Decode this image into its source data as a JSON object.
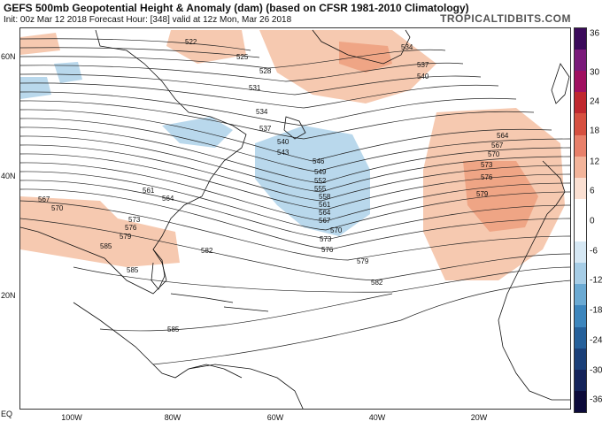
{
  "header": {
    "title": "GEFS 500mb Geopotential Height & Anomaly (dam) (based on CFSR 1981-2010 Climatology)",
    "subtitle": "Init: 00z Mar 12 2018   Forecast Hour: [348]   valid at 12z Mon, Mar 26 2018",
    "brand": "TROPICALTIDBITS.COM"
  },
  "axes": {
    "lat_labels": [
      "60N",
      "40N",
      "20N",
      "EQ"
    ],
    "lon_labels": [
      "100W",
      "80W",
      "60W",
      "40W",
      "20W"
    ]
  },
  "colorbar": {
    "labels": [
      "36",
      "30",
      "24",
      "18",
      "12",
      "6",
      "0",
      "-6",
      "-12",
      "-18",
      "-24",
      "-30",
      "-36"
    ],
    "colors": [
      "#3a0a5a",
      "#7a1a7a",
      "#a01060",
      "#c0282e",
      "#d65040",
      "#e8806a",
      "#f3b49a",
      "#fbe0d2",
      "#ffffff",
      "#ffffff",
      "#d6e8f4",
      "#a6cde6",
      "#6baad3",
      "#3d86bd",
      "#25609a",
      "#1a3f78",
      "#14235a",
      "#0c0a3a"
    ]
  },
  "map": {
    "contour_labels": [
      "522",
      "525",
      "528",
      "531",
      "534",
      "537",
      "540",
      "543",
      "546",
      "549",
      "552",
      "555",
      "558",
      "561",
      "564",
      "567",
      "570",
      "573",
      "576",
      "579",
      "582",
      "585",
      "534",
      "537",
      "540",
      "564",
      "567",
      "570",
      "573",
      "576",
      "579",
      "561",
      "564",
      "567",
      "570",
      "573",
      "576",
      "579",
      "585",
      "585",
      "582"
    ],
    "anomaly_colors": {
      "positive": "#f6c9b0",
      "positive_strong": "#efa585",
      "negative": "#b9d8ec",
      "negative_strong": "#8fbfe0"
    }
  }
}
